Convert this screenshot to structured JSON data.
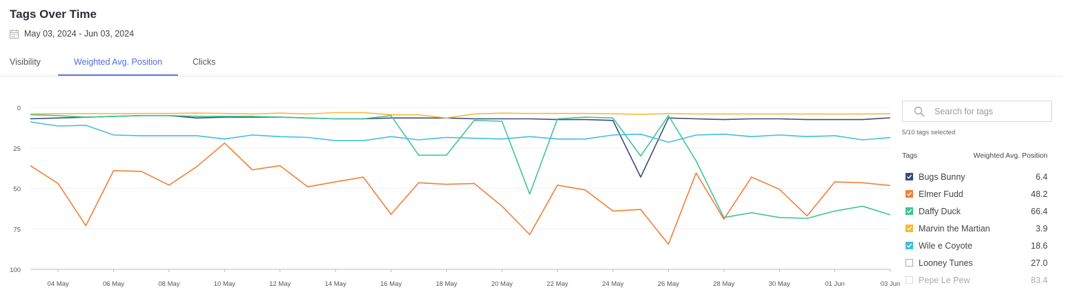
{
  "header": {
    "title": "Tags Over Time",
    "date_range": "May 03, 2024 - Jun 03, 2024"
  },
  "tabs": [
    {
      "label": "Visibility",
      "active": false
    },
    {
      "label": "Weighted Avg. Position",
      "active": true
    },
    {
      "label": "Clicks",
      "active": false
    }
  ],
  "sidebar": {
    "search_placeholder": "Search for tags",
    "selected_count": "5/10 tags selected",
    "col_tags": "Tags",
    "col_metric": "Weighted Avg. Position",
    "items": [
      {
        "name": "Bugs Bunny",
        "value": "6.4",
        "color": "#3d4a7a",
        "checked": true
      },
      {
        "name": "Elmer Fudd",
        "value": "48.2",
        "color": "#f07f36",
        "checked": true
      },
      {
        "name": "Daffy Duck",
        "value": "66.4",
        "color": "#3ec49a",
        "checked": true
      },
      {
        "name": "Marvin the Martian",
        "value": "3.9",
        "color": "#f5b93b",
        "checked": true
      },
      {
        "name": "Wile e Coyote",
        "value": "18.6",
        "color": "#3fbfe0",
        "checked": true
      },
      {
        "name": "Looney Tunes",
        "value": "27.0",
        "color": "#aaaaaa",
        "checked": false
      },
      {
        "name": "Pepe Le Pew",
        "value": "83.4",
        "color": "#cccccc",
        "checked": false
      }
    ]
  },
  "chart_data": {
    "type": "line",
    "y_reversed": true,
    "ylim": [
      0,
      100
    ],
    "yticks": [
      "0",
      "25",
      "50",
      "75",
      "100"
    ],
    "ytick_values": [
      0,
      25,
      50,
      75,
      100
    ],
    "grid": "horizontal",
    "x": [
      "03 May",
      "04 May",
      "05 May",
      "06 May",
      "07 May",
      "08 May",
      "09 May",
      "10 May",
      "11 May",
      "12 May",
      "13 May",
      "14 May",
      "15 May",
      "16 May",
      "17 May",
      "18 May",
      "19 May",
      "20 May",
      "21 May",
      "22 May",
      "23 May",
      "24 May",
      "25 May",
      "26 May",
      "27 May",
      "28 May",
      "29 May",
      "30 May",
      "31 May",
      "01 Jun",
      "02 Jun",
      "03 Jun"
    ],
    "xtick_labels": [
      "04 May",
      "06 May",
      "08 May",
      "10 May",
      "12 May",
      "14 May",
      "16 May",
      "18 May",
      "20 May",
      "22 May",
      "24 May",
      "26 May",
      "28 May",
      "30 May",
      "01 Jun",
      "03 Jun"
    ],
    "series": [
      {
        "name": "Bugs Bunny",
        "color": "#3d4a7a",
        "values": [
          7,
          6.5,
          6,
          5.5,
          5,
          5,
          6.5,
          6,
          6,
          6,
          6.5,
          7,
          7,
          6.5,
          6.5,
          6.5,
          7,
          7,
          7,
          7.5,
          7.5,
          8,
          43,
          6.5,
          7,
          7.5,
          7,
          7,
          7.5,
          7.5,
          7.5,
          6.4
        ]
      },
      {
        "name": "Elmer Fudd",
        "color": "#f07f36",
        "values": [
          36,
          47,
          73,
          39,
          39.5,
          48,
          36.5,
          22,
          38.5,
          36,
          49,
          46,
          43,
          66,
          46.5,
          47.5,
          47,
          61,
          78.5,
          48,
          51,
          64,
          63,
          84.5,
          40.5,
          69,
          43,
          50.5,
          67,
          46,
          46.5,
          48.2
        ]
      },
      {
        "name": "Daffy Duck",
        "color": "#3ec49a",
        "values": [
          4.5,
          5,
          6,
          5.5,
          5,
          5,
          5.5,
          5.5,
          5.5,
          6,
          6.5,
          7,
          7,
          5,
          29.5,
          29.5,
          8,
          8.5,
          53.5,
          7,
          6,
          6.5,
          30,
          5,
          33,
          68,
          65,
          68,
          68.5,
          64,
          61,
          66.4
        ]
      },
      {
        "name": "Marvin the Martian",
        "color": "#f5b93b",
        "values": [
          4,
          3.8,
          3.8,
          3.8,
          3.7,
          3.7,
          3.5,
          3.7,
          4,
          3.5,
          4,
          3.2,
          3.2,
          4.5,
          4.5,
          6.5,
          4,
          3.5,
          3.7,
          3.7,
          3.7,
          3.9,
          4.3,
          3.8,
          4,
          4,
          4,
          4,
          4,
          4.1,
          4,
          3.9
        ]
      },
      {
        "name": "Wile e Coyote",
        "color": "#3fbfe0",
        "values": [
          9,
          11.5,
          11,
          17,
          17.5,
          17.5,
          17.5,
          19.5,
          17,
          18,
          18.5,
          20.5,
          20.5,
          18,
          20,
          18.5,
          19,
          19.5,
          18,
          19.5,
          19.5,
          17,
          16.5,
          21.5,
          17,
          16.5,
          18,
          17,
          18,
          17.5,
          20,
          18.6
        ]
      }
    ]
  }
}
